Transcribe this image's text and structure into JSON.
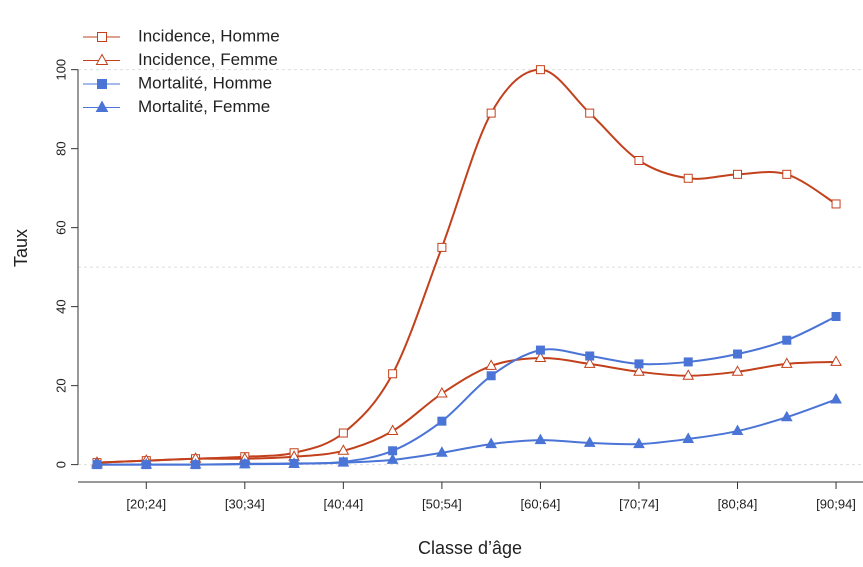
{
  "chart_data": {
    "type": "line",
    "xlabel": "Classe d’âge",
    "ylabel": "Taux",
    "categories": [
      null,
      "[20;24]",
      null,
      "[30;34]",
      null,
      "[40;44]",
      null,
      "[50;54]",
      null,
      "[60;64]",
      null,
      "[70;74]",
      null,
      "[80;84]",
      null,
      "[90;94]"
    ],
    "series": [
      {
        "name": "Incidence, Homme",
        "color": "#c2411c",
        "marker": "square-open",
        "values": [
          0.5,
          1,
          1.5,
          2,
          3,
          8,
          23,
          55,
          89,
          100,
          89,
          77,
          72.5,
          73.5,
          73.5,
          66
        ]
      },
      {
        "name": "Incidence, Femme",
        "color": "#c2411c",
        "marker": "triangle-open",
        "values": [
          0.5,
          1,
          1.5,
          1.5,
          2,
          3.5,
          8.5,
          18,
          25,
          27,
          25.5,
          23.5,
          22.5,
          23.5,
          25.5,
          26
        ]
      },
      {
        "name": "Mortalité, Homme",
        "color": "#4a74d6",
        "marker": "square",
        "values": [
          0,
          0,
          0,
          0.2,
          0.3,
          0.7,
          3.5,
          11,
          22.5,
          29,
          27.5,
          25.5,
          26,
          28,
          31.5,
          37.5
        ]
      },
      {
        "name": "Mortalité, Femme",
        "color": "#4a74d6",
        "marker": "triangle",
        "values": [
          0,
          0,
          0,
          0.1,
          0.2,
          0.5,
          1.2,
          3,
          5.2,
          6.2,
          5.5,
          5.2,
          6.5,
          8.5,
          12,
          16.5
        ]
      }
    ],
    "ylim": [
      -4.4,
      114.6
    ],
    "yticks": [
      0,
      20,
      40,
      60,
      80,
      100
    ],
    "grid_lines": [
      0,
      50,
      100
    ],
    "legend": "top-left",
    "smooth": true
  }
}
